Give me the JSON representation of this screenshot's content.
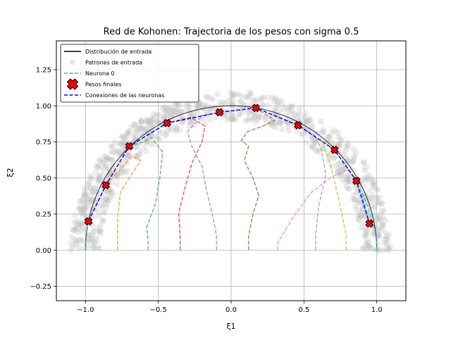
{
  "chart_data": {
    "type": "line",
    "title": "Red de Kohonen: Trajectoria de los pesos con sigma 0.5",
    "xlabel": "ξ1",
    "ylabel": "ξ2",
    "xlim": [
      -1.2,
      1.2
    ],
    "ylim": [
      -0.35,
      1.45
    ],
    "xticks": [
      -1.0,
      -0.5,
      0.0,
      0.5,
      1.0
    ],
    "xtick_labels": [
      "−1.0",
      "−0.5",
      "0.0",
      "0.5",
      "1.0"
    ],
    "yticks": [
      -0.25,
      0.0,
      0.25,
      0.5,
      0.75,
      1.0,
      1.25
    ],
    "ytick_labels": [
      "−0.25",
      "0.00",
      "0.25",
      "0.50",
      "0.75",
      "1.00",
      "1.25"
    ],
    "grid": true,
    "legend_position": "upper-left",
    "legend": [
      {
        "label": "Distribución de entrada",
        "kind": "line",
        "color": "#000000"
      },
      {
        "label": "Patrones de entrada",
        "kind": "point",
        "color": "#bbbbbb"
      },
      {
        "label": "Neurona 0",
        "kind": "dash",
        "color": "#5da5c5"
      },
      {
        "label": "Pesos finales",
        "kind": "xmarker",
        "color": "#ff0000"
      },
      {
        "label": "Conexiones de las neuronas",
        "kind": "dash",
        "color": "#0000ff"
      }
    ],
    "input_distribution": {
      "type": "semicircle",
      "radius": 1.0,
      "color": "#000000"
    },
    "input_patterns": {
      "color": "#bbbbbb",
      "band_min_radius": 0.9,
      "band_max_radius": 1.1
    },
    "final_weights": [
      {
        "x": -0.98,
        "y": 0.2
      },
      {
        "x": -0.86,
        "y": 0.45
      },
      {
        "x": -0.7,
        "y": 0.72
      },
      {
        "x": -0.44,
        "y": 0.88
      },
      {
        "x": -0.08,
        "y": 0.955
      },
      {
        "x": 0.17,
        "y": 0.985
      },
      {
        "x": 0.46,
        "y": 0.865
      },
      {
        "x": 0.71,
        "y": 0.695
      },
      {
        "x": 0.86,
        "y": 0.48
      },
      {
        "x": 0.95,
        "y": 0.185
      }
    ],
    "trajectories": [
      {
        "color": "#5da5c5",
        "points": [
          [
            -1.0,
            0.0
          ],
          [
            -1.0,
            0.08
          ],
          [
            -0.98,
            0.2
          ]
        ]
      },
      {
        "color": "#ff9c3a",
        "points": [
          [
            -0.78,
            0.0
          ],
          [
            -0.78,
            0.22
          ],
          [
            -0.76,
            0.4
          ],
          [
            -0.7,
            0.5
          ],
          [
            -0.62,
            0.62
          ],
          [
            -0.68,
            0.65
          ],
          [
            -0.86,
            0.45
          ]
        ]
      },
      {
        "color": "#5cb85c",
        "points": [
          [
            -0.57,
            0.0
          ],
          [
            -0.57,
            0.07
          ],
          [
            -0.58,
            0.16
          ],
          [
            -0.52,
            0.32
          ],
          [
            -0.49,
            0.5
          ],
          [
            -0.47,
            0.68
          ],
          [
            -0.55,
            0.78
          ],
          [
            -0.6,
            0.75
          ],
          [
            -0.7,
            0.72
          ]
        ]
      },
      {
        "color": "#e05252",
        "points": [
          [
            -0.35,
            0.0
          ],
          [
            -0.35,
            0.1
          ],
          [
            -0.36,
            0.26
          ],
          [
            -0.32,
            0.42
          ],
          [
            -0.27,
            0.6
          ],
          [
            -0.2,
            0.75
          ],
          [
            -0.18,
            0.86
          ],
          [
            -0.28,
            0.92
          ],
          [
            -0.44,
            0.88
          ]
        ]
      },
      {
        "color": "#b08bd4",
        "points": [
          [
            -0.1,
            0.0
          ],
          [
            -0.1,
            0.1
          ],
          [
            -0.13,
            0.25
          ],
          [
            -0.17,
            0.42
          ],
          [
            -0.2,
            0.58
          ],
          [
            -0.27,
            0.72
          ],
          [
            -0.3,
            0.82
          ],
          [
            -0.2,
            0.93
          ],
          [
            -0.08,
            0.955
          ]
        ]
      },
      {
        "color": "#a8775e",
        "points": [
          [
            0.12,
            0.0
          ],
          [
            0.12,
            0.1
          ],
          [
            0.15,
            0.25
          ],
          [
            0.19,
            0.38
          ],
          [
            0.15,
            0.5
          ],
          [
            0.09,
            0.62
          ],
          [
            0.12,
            0.72
          ],
          [
            0.07,
            0.76
          ],
          [
            0.11,
            0.82
          ],
          [
            0.22,
            0.86
          ],
          [
            0.3,
            0.9
          ],
          [
            0.17,
            0.985
          ]
        ]
      },
      {
        "color": "#f08fcf",
        "points": [
          [
            0.32,
            0.0
          ],
          [
            0.32,
            0.05
          ],
          [
            0.42,
            0.22
          ],
          [
            0.55,
            0.4
          ],
          [
            0.68,
            0.5
          ],
          [
            0.8,
            0.56
          ],
          [
            0.86,
            0.48
          ]
        ]
      },
      {
        "color": "#a9a9a9",
        "points": [
          [
            0.58,
            0.0
          ],
          [
            0.58,
            0.1
          ],
          [
            0.6,
            0.3
          ],
          [
            0.65,
            0.52
          ],
          [
            0.62,
            0.7
          ],
          [
            0.57,
            0.8
          ],
          [
            0.46,
            0.865
          ]
        ]
      },
      {
        "color": "#c9c93a",
        "points": [
          [
            0.79,
            0.0
          ],
          [
            0.79,
            0.1
          ],
          [
            0.74,
            0.35
          ],
          [
            0.68,
            0.6
          ],
          [
            0.62,
            0.76
          ],
          [
            0.71,
            0.695
          ]
        ]
      },
      {
        "color": "#3fbfcf",
        "points": [
          [
            1.0,
            0.0
          ],
          [
            1.0,
            0.08
          ],
          [
            0.98,
            0.16
          ],
          [
            0.94,
            0.3
          ],
          [
            0.89,
            0.42
          ],
          [
            0.95,
            0.185
          ]
        ]
      }
    ],
    "connection_line": {
      "color": "#0000ff"
    }
  }
}
